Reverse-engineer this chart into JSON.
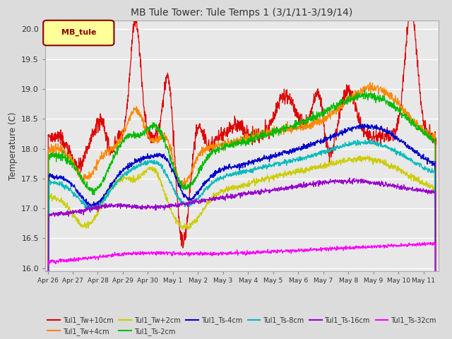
{
  "title": "MB Tule Tower: Tule Temps 1 (3/1/11-3/19/14)",
  "ylabel": "Temperature (C)",
  "ylim": [
    15.95,
    20.15
  ],
  "xlim": [
    -0.1,
    15.6
  ],
  "background_color": "#dcdcdc",
  "plot_background": "#e8e8e8",
  "legend_box_label": "MB_tule",
  "legend_box_color": "#ffff99",
  "legend_box_border": "#8b0000",
  "xtick_labels": [
    "Apr 26",
    "Apr 27",
    "Apr 28",
    "Apr 29",
    "Apr 30",
    "May 1",
    "May 2",
    "May 3",
    "May 4",
    "May 5",
    "May 6",
    "May 7",
    "May 8",
    "May 9",
    "May 10",
    "May 11"
  ],
  "ytick_vals": [
    16.0,
    16.5,
    17.0,
    17.5,
    18.0,
    18.5,
    19.0,
    19.5,
    20.0
  ],
  "series_colors": {
    "Tul1_Tw+10cm": "#dd0000",
    "Tul1_Tw+4cm": "#ff8800",
    "Tul1_Tw+2cm": "#cccc00",
    "Tul1_Ts-2cm": "#00bb00",
    "Tul1_Ts-4cm": "#0000cc",
    "Tul1_Ts-8cm": "#00bbbb",
    "Tul1_Ts-16cm": "#9900cc",
    "Tul1_Ts-32cm": "#ff00ff"
  }
}
